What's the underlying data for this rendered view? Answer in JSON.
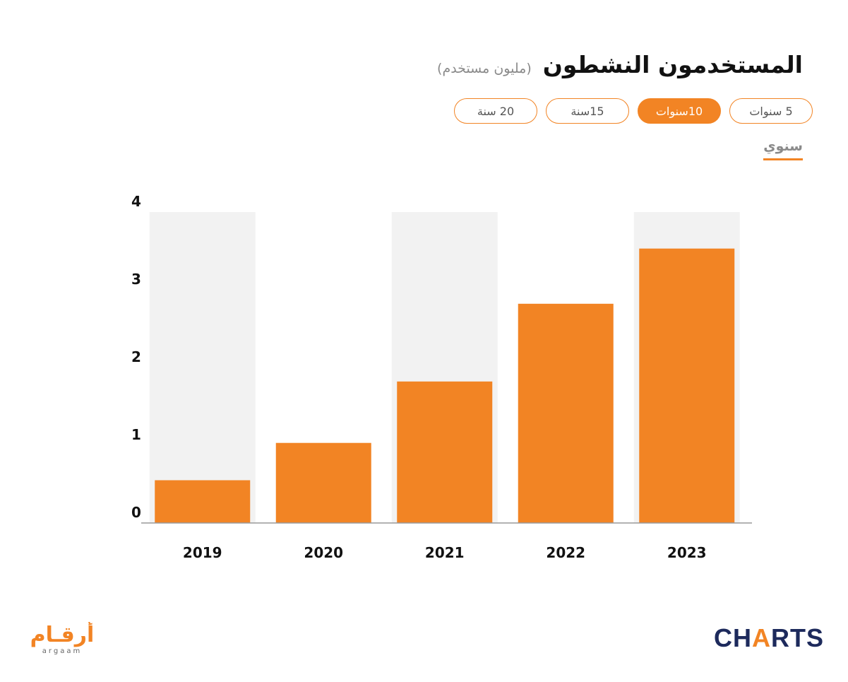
{
  "header": {
    "title": "المستخدمون النشطون",
    "subtitle": "(مليون مستخدم)"
  },
  "tabs": [
    {
      "label": "5 سنوات",
      "active": false
    },
    {
      "label": "10سنوات",
      "active": true
    },
    {
      "label": "15سنة",
      "active": false
    },
    {
      "label": "20 سنة",
      "active": false
    }
  ],
  "period_tab": {
    "label": "سنوي"
  },
  "colors": {
    "accent": "#f28424",
    "band": "#f2f2f2",
    "axis": "#999999",
    "brand_dark": "#1d2a5c"
  },
  "chart_data": {
    "type": "bar",
    "categories": [
      "2019",
      "2020",
      "2021",
      "2022",
      "2023"
    ],
    "values": [
      0.55,
      1.03,
      1.82,
      2.82,
      3.53
    ],
    "ylim": [
      0,
      4
    ],
    "yticks": [
      0,
      1,
      2,
      3,
      4
    ],
    "grid": false,
    "title": "",
    "xlabel": "",
    "ylabel": ""
  },
  "logos": {
    "argaam": {
      "text": "أرقام",
      "latin": "argaam"
    },
    "charts": {
      "pre": "CH",
      "mid": "A",
      "post": "RTS"
    }
  }
}
